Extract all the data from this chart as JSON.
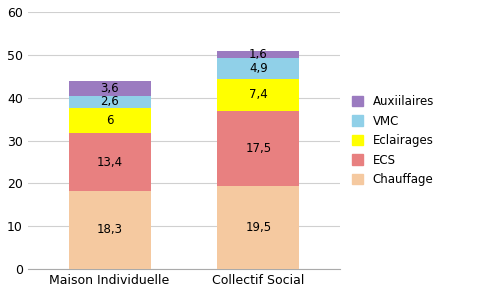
{
  "categories": [
    "Maison Individuelle",
    "Collectif Social"
  ],
  "series": {
    "Chauffage": [
      18.3,
      19.5
    ],
    "ECS": [
      13.4,
      17.5
    ],
    "Eclairages": [
      6.0,
      7.4
    ],
    "VMC": [
      2.6,
      4.9
    ],
    "Auxiilaires": [
      3.6,
      1.6
    ]
  },
  "colors": {
    "Chauffage": "#F5C9A0",
    "ECS": "#E88080",
    "Eclairages": "#FFFF00",
    "VMC": "#90D0E8",
    "Auxiilaires": "#9B7BC0"
  },
  "layer_order": [
    "Chauffage",
    "ECS",
    "Eclairages",
    "VMC",
    "Auxiilaires"
  ],
  "ylim": [
    0,
    60
  ],
  "yticks": [
    0,
    10,
    20,
    30,
    40,
    50,
    60
  ],
  "bar_width": 0.55,
  "background_color": "#FFFFFF",
  "grid_color": "#D0D0D0",
  "label_fontsize": 8.5,
  "tick_fontsize": 9,
  "legend_fontsize": 8.5,
  "figsize": [
    4.86,
    2.94
  ],
  "dpi": 100
}
